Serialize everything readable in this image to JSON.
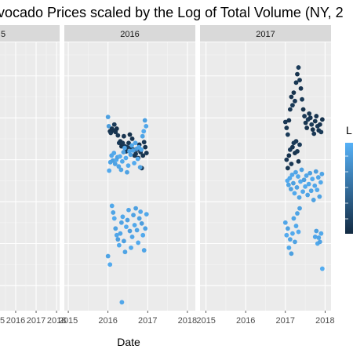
{
  "chart_data": {
    "type": "scatter",
    "title": "vocado Prices scaled by the Log of Total Volume (NY, 2",
    "xlabel": "Date",
    "ylabel": "",
    "facets": [
      {
        "label": "5",
        "xlim": [
          2014.85,
          2018.15
        ],
        "points": []
      },
      {
        "label": "2016",
        "xlim": [
          2014.9,
          2018.2
        ],
        "points": [
          {
            "x": 2016.0,
            "y": 0.51,
            "v": 0.88
          },
          {
            "x": 2016.02,
            "y": 0.4,
            "v": 0.85
          },
          {
            "x": 2016.05,
            "y": 0.34,
            "v": 0.05
          },
          {
            "x": 2016.07,
            "y": 0.32,
            "v": 0.1
          },
          {
            "x": 2016.1,
            "y": 0.37,
            "v": 0.08
          },
          {
            "x": 2016.13,
            "y": 0.35,
            "v": 0.06
          },
          {
            "x": 2016.16,
            "y": 0.42,
            "v": 0.12
          },
          {
            "x": 2016.19,
            "y": 0.33,
            "v": 0.07
          },
          {
            "x": 2016.22,
            "y": 0.37,
            "v": 0.06
          },
          {
            "x": 2016.25,
            "y": 0.29,
            "v": 0.1
          },
          {
            "x": 2016.28,
            "y": 0.2,
            "v": 0.12
          },
          {
            "x": 2016.31,
            "y": 0.22,
            "v": 0.08
          },
          {
            "x": 2016.34,
            "y": 0.16,
            "v": 0.05
          },
          {
            "x": 2016.37,
            "y": 0.2,
            "v": 0.09
          },
          {
            "x": 2016.4,
            "y": 0.28,
            "v": 0.07
          },
          {
            "x": 2016.43,
            "y": 0.16,
            "v": 0.1
          },
          {
            "x": 2016.46,
            "y": 0.1,
            "v": 0.06
          },
          {
            "x": 2016.49,
            "y": 0.15,
            "v": 0.12
          },
          {
            "x": 2016.52,
            "y": 0.2,
            "v": 0.08
          },
          {
            "x": 2016.55,
            "y": 0.3,
            "v": 0.05
          },
          {
            "x": 2016.58,
            "y": 0.15,
            "v": 0.11
          },
          {
            "x": 2016.61,
            "y": 0.25,
            "v": 0.07
          },
          {
            "x": 2016.64,
            "y": 0.12,
            "v": 0.09
          },
          {
            "x": 2016.67,
            "y": 0.05,
            "v": 0.06
          },
          {
            "x": 2016.7,
            "y": 0.07,
            "v": 0.08
          },
          {
            "x": 2016.73,
            "y": 0.12,
            "v": 0.1
          },
          {
            "x": 2016.76,
            "y": 0.02,
            "v": 0.05
          },
          {
            "x": 2016.79,
            "y": 0.18,
            "v": 0.07
          },
          {
            "x": 2016.82,
            "y": 0.09,
            "v": 0.09
          },
          {
            "x": 2016.85,
            "y": -0.1,
            "v": 0.12
          },
          {
            "x": 2016.88,
            "y": 0.05,
            "v": 0.08
          },
          {
            "x": 2016.91,
            "y": 0.21,
            "v": 0.1
          },
          {
            "x": 2016.94,
            "y": 0.15,
            "v": 0.06
          },
          {
            "x": 2016.97,
            "y": 0.08,
            "v": 0.09
          },
          {
            "x": 2016.03,
            "y": -0.13,
            "v": 0.95
          },
          {
            "x": 2016.06,
            "y": -0.03,
            "v": 0.9
          },
          {
            "x": 2016.09,
            "y": 0.05,
            "v": 0.92
          },
          {
            "x": 2016.12,
            "y": -0.01,
            "v": 0.87
          },
          {
            "x": 2016.15,
            "y": 0.08,
            "v": 0.93
          },
          {
            "x": 2016.18,
            "y": -0.05,
            "v": 0.89
          },
          {
            "x": 2016.21,
            "y": 0.0,
            "v": 0.94
          },
          {
            "x": 2016.24,
            "y": 0.03,
            "v": 0.88
          },
          {
            "x": 2016.27,
            "y": -0.08,
            "v": 0.91
          },
          {
            "x": 2016.3,
            "y": 0.04,
            "v": 0.96
          },
          {
            "x": 2016.33,
            "y": -0.12,
            "v": 0.9
          },
          {
            "x": 2016.36,
            "y": -0.02,
            "v": 0.93
          },
          {
            "x": 2016.39,
            "y": 0.09,
            "v": 0.87
          },
          {
            "x": 2016.42,
            "y": 0.14,
            "v": 0.92
          },
          {
            "x": 2016.45,
            "y": 0.02,
            "v": 0.95
          },
          {
            "x": 2016.48,
            "y": -0.15,
            "v": 0.89
          },
          {
            "x": 2016.51,
            "y": -0.07,
            "v": 0.94
          },
          {
            "x": 2016.54,
            "y": 0.1,
            "v": 0.91
          },
          {
            "x": 2016.57,
            "y": 0.06,
            "v": 0.88
          },
          {
            "x": 2016.6,
            "y": 0.17,
            "v": 0.93
          },
          {
            "x": 2016.63,
            "y": 0.11,
            "v": 0.9
          },
          {
            "x": 2016.66,
            "y": -0.04,
            "v": 0.95
          },
          {
            "x": 2016.69,
            "y": 0.2,
            "v": 0.92
          },
          {
            "x": 2016.72,
            "y": 0.13,
            "v": 0.86
          },
          {
            "x": 2016.75,
            "y": 0.01,
            "v": 0.94
          },
          {
            "x": 2016.78,
            "y": 0.15,
            "v": 0.91
          },
          {
            "x": 2016.81,
            "y": -0.09,
            "v": 0.88
          },
          {
            "x": 2016.84,
            "y": 0.12,
            "v": 0.93
          },
          {
            "x": 2016.87,
            "y": 0.28,
            "v": 0.9
          },
          {
            "x": 2016.9,
            "y": 0.34,
            "v": 0.95
          },
          {
            "x": 2016.93,
            "y": 0.47,
            "v": 0.87
          },
          {
            "x": 2016.96,
            "y": 0.4,
            "v": 0.92
          },
          {
            "x": 2016.1,
            "y": -0.55,
            "v": 0.93
          },
          {
            "x": 2016.13,
            "y": -0.63,
            "v": 0.9
          },
          {
            "x": 2016.16,
            "y": -0.7,
            "v": 0.95
          },
          {
            "x": 2016.19,
            "y": -0.82,
            "v": 0.88
          },
          {
            "x": 2016.22,
            "y": -0.9,
            "v": 0.92
          },
          {
            "x": 2016.25,
            "y": -0.95,
            "v": 0.86
          },
          {
            "x": 2016.28,
            "y": -1.02,
            "v": 0.94
          },
          {
            "x": 2016.31,
            "y": -0.88,
            "v": 0.91
          },
          {
            "x": 2016.34,
            "y": -0.75,
            "v": 0.89
          },
          {
            "x": 2016.37,
            "y": -0.68,
            "v": 0.93
          },
          {
            "x": 2016.4,
            "y": -0.97,
            "v": 0.87
          },
          {
            "x": 2016.43,
            "y": -1.1,
            "v": 0.9
          },
          {
            "x": 2016.46,
            "y": -0.8,
            "v": 0.95
          },
          {
            "x": 2016.49,
            "y": -0.72,
            "v": 0.88
          },
          {
            "x": 2016.52,
            "y": -0.6,
            "v": 0.92
          },
          {
            "x": 2016.55,
            "y": -0.85,
            "v": 0.86
          },
          {
            "x": 2016.58,
            "y": -1.05,
            "v": 0.94
          },
          {
            "x": 2016.61,
            "y": -0.92,
            "v": 0.91
          },
          {
            "x": 2016.64,
            "y": -0.66,
            "v": 0.89
          },
          {
            "x": 2016.67,
            "y": -0.78,
            "v": 0.93
          },
          {
            "x": 2016.7,
            "y": -0.58,
            "v": 0.87
          },
          {
            "x": 2016.73,
            "y": -0.84,
            "v": 0.9
          },
          {
            "x": 2016.76,
            "y": -0.99,
            "v": 0.95
          },
          {
            "x": 2016.79,
            "y": -0.7,
            "v": 0.88
          },
          {
            "x": 2016.82,
            "y": -0.62,
            "v": 0.92
          },
          {
            "x": 2016.85,
            "y": -0.76,
            "v": 0.86
          },
          {
            "x": 2016.88,
            "y": -0.9,
            "v": 0.94
          },
          {
            "x": 2016.91,
            "y": -1.08,
            "v": 0.91
          },
          {
            "x": 2016.94,
            "y": -0.82,
            "v": 0.89
          },
          {
            "x": 2016.97,
            "y": -0.65,
            "v": 0.93
          },
          {
            "x": 2016.0,
            "y": -1.15,
            "v": 0.9
          },
          {
            "x": 2016.05,
            "y": -1.25,
            "v": 0.95
          },
          {
            "x": 2016.35,
            "y": -1.7,
            "v": 0.92
          }
        ]
      },
      {
        "label": "2017",
        "xlim": [
          2014.85,
          2018.15
        ],
        "points": [
          {
            "x": 2017.0,
            "y": 0.45,
            "v": 0.1
          },
          {
            "x": 2017.03,
            "y": 0.38,
            "v": 0.08
          },
          {
            "x": 2017.06,
            "y": 0.3,
            "v": 0.12
          },
          {
            "x": 2017.09,
            "y": 0.47,
            "v": 0.06
          },
          {
            "x": 2017.12,
            "y": 0.6,
            "v": 0.09
          },
          {
            "x": 2017.15,
            "y": 0.75,
            "v": 0.07
          },
          {
            "x": 2017.18,
            "y": 0.65,
            "v": 0.11
          },
          {
            "x": 2017.21,
            "y": 0.8,
            "v": 0.05
          },
          {
            "x": 2017.24,
            "y": 0.7,
            "v": 0.1
          },
          {
            "x": 2017.27,
            "y": 0.92,
            "v": 0.08
          },
          {
            "x": 2017.3,
            "y": 1.02,
            "v": 0.06
          },
          {
            "x": 2017.33,
            "y": 1.1,
            "v": 0.12
          },
          {
            "x": 2017.36,
            "y": 0.95,
            "v": 0.09
          },
          {
            "x": 2017.39,
            "y": 0.85,
            "v": 0.07
          },
          {
            "x": 2017.42,
            "y": 0.72,
            "v": 0.11
          },
          {
            "x": 2017.45,
            "y": 0.6,
            "v": 0.05
          },
          {
            "x": 2017.48,
            "y": 0.52,
            "v": 0.1
          },
          {
            "x": 2017.51,
            "y": 0.44,
            "v": 0.08
          },
          {
            "x": 2017.54,
            "y": 0.38,
            "v": 0.06
          },
          {
            "x": 2017.57,
            "y": 0.48,
            "v": 0.12
          },
          {
            "x": 2017.6,
            "y": 0.55,
            "v": 0.09
          },
          {
            "x": 2017.63,
            "y": 0.5,
            "v": 0.07
          },
          {
            "x": 2017.66,
            "y": 0.42,
            "v": 0.11
          },
          {
            "x": 2017.69,
            "y": 0.36,
            "v": 0.05
          },
          {
            "x": 2017.72,
            "y": 0.31,
            "v": 0.1
          },
          {
            "x": 2017.75,
            "y": 0.46,
            "v": 0.08
          },
          {
            "x": 2017.78,
            "y": 0.52,
            "v": 0.06
          },
          {
            "x": 2017.81,
            "y": 0.4,
            "v": 0.12
          },
          {
            "x": 2017.84,
            "y": 0.35,
            "v": 0.09
          },
          {
            "x": 2017.87,
            "y": 0.42,
            "v": 0.07
          },
          {
            "x": 2017.9,
            "y": 0.33,
            "v": 0.11
          },
          {
            "x": 2017.93,
            "y": 0.48,
            "v": 0.05
          },
          {
            "x": 2017.03,
            "y": 0.0,
            "v": 0.1
          },
          {
            "x": 2017.06,
            "y": -0.1,
            "v": 0.08
          },
          {
            "x": 2017.09,
            "y": 0.05,
            "v": 0.06
          },
          {
            "x": 2017.12,
            "y": 0.12,
            "v": 0.12
          },
          {
            "x": 2017.15,
            "y": -0.05,
            "v": 0.09
          },
          {
            "x": 2017.18,
            "y": 0.15,
            "v": 0.07
          },
          {
            "x": 2017.21,
            "y": 0.2,
            "v": 0.11
          },
          {
            "x": 2017.24,
            "y": 0.08,
            "v": 0.05
          },
          {
            "x": 2017.27,
            "y": 0.22,
            "v": 0.1
          },
          {
            "x": 2017.3,
            "y": 0.1,
            "v": 0.08
          },
          {
            "x": 2017.33,
            "y": -0.02,
            "v": 0.06
          },
          {
            "x": 2017.36,
            "y": 0.18,
            "v": 0.12
          },
          {
            "x": 2017.05,
            "y": -0.25,
            "v": 0.95
          },
          {
            "x": 2017.08,
            "y": -0.3,
            "v": 0.9
          },
          {
            "x": 2017.11,
            "y": -0.22,
            "v": 0.93
          },
          {
            "x": 2017.14,
            "y": -0.35,
            "v": 0.88
          },
          {
            "x": 2017.17,
            "y": -0.18,
            "v": 0.92
          },
          {
            "x": 2017.2,
            "y": -0.28,
            "v": 0.87
          },
          {
            "x": 2017.23,
            "y": -0.4,
            "v": 0.94
          },
          {
            "x": 2017.26,
            "y": -0.15,
            "v": 0.91
          },
          {
            "x": 2017.29,
            "y": -0.33,
            "v": 0.89
          },
          {
            "x": 2017.32,
            "y": -0.2,
            "v": 0.93
          },
          {
            "x": 2017.35,
            "y": -0.45,
            "v": 0.9
          },
          {
            "x": 2017.38,
            "y": -0.26,
            "v": 0.95
          },
          {
            "x": 2017.41,
            "y": -0.12,
            "v": 0.88
          },
          {
            "x": 2017.44,
            "y": -0.38,
            "v": 0.92
          },
          {
            "x": 2017.47,
            "y": -0.24,
            "v": 0.86
          },
          {
            "x": 2017.5,
            "y": -0.32,
            "v": 0.94
          },
          {
            "x": 2017.53,
            "y": -0.19,
            "v": 0.91
          },
          {
            "x": 2017.56,
            "y": -0.42,
            "v": 0.89
          },
          {
            "x": 2017.59,
            "y": -0.29,
            "v": 0.93
          },
          {
            "x": 2017.62,
            "y": -0.16,
            "v": 0.87
          },
          {
            "x": 2017.65,
            "y": -0.37,
            "v": 0.9
          },
          {
            "x": 2017.68,
            "y": -0.23,
            "v": 0.95
          },
          {
            "x": 2017.71,
            "y": -0.48,
            "v": 0.88
          },
          {
            "x": 2017.74,
            "y": -0.31,
            "v": 0.92
          },
          {
            "x": 2017.77,
            "y": -0.14,
            "v": 0.86
          },
          {
            "x": 2017.8,
            "y": -0.36,
            "v": 0.94
          },
          {
            "x": 2017.83,
            "y": -0.21,
            "v": 0.91
          },
          {
            "x": 2017.86,
            "y": -0.44,
            "v": 0.89
          },
          {
            "x": 2017.89,
            "y": -0.27,
            "v": 0.93
          },
          {
            "x": 2017.92,
            "y": -0.17,
            "v": 0.9
          },
          {
            "x": 2017.0,
            "y": -0.75,
            "v": 0.92
          },
          {
            "x": 2017.03,
            "y": -0.9,
            "v": 0.95
          },
          {
            "x": 2017.06,
            "y": -0.82,
            "v": 0.88
          },
          {
            "x": 2017.09,
            "y": -1.05,
            "v": 0.93
          },
          {
            "x": 2017.12,
            "y": -0.95,
            "v": 0.9
          },
          {
            "x": 2017.15,
            "y": -1.12,
            "v": 0.87
          },
          {
            "x": 2017.18,
            "y": -0.88,
            "v": 0.94
          },
          {
            "x": 2017.21,
            "y": -0.7,
            "v": 0.91
          },
          {
            "x": 2017.24,
            "y": -0.98,
            "v": 0.89
          },
          {
            "x": 2017.27,
            "y": -0.79,
            "v": 0.93
          },
          {
            "x": 2017.3,
            "y": -0.64,
            "v": 0.9
          },
          {
            "x": 2017.33,
            "y": -0.86,
            "v": 0.95
          },
          {
            "x": 2017.36,
            "y": -0.58,
            "v": 0.88
          },
          {
            "x": 2017.75,
            "y": -0.92,
            "v": 0.92
          },
          {
            "x": 2017.78,
            "y": -0.85,
            "v": 0.87
          },
          {
            "x": 2017.81,
            "y": -1.0,
            "v": 0.94
          },
          {
            "x": 2017.84,
            "y": -0.93,
            "v": 0.91
          },
          {
            "x": 2017.87,
            "y": -0.98,
            "v": 0.89
          },
          {
            "x": 2017.9,
            "y": -0.88,
            "v": 0.93
          },
          {
            "x": 2017.93,
            "y": -1.3,
            "v": 0.96
          }
        ]
      }
    ],
    "x_ticks": [
      2015,
      2016,
      2017,
      2018
    ],
    "ylim": [
      -1.8,
      1.4
    ],
    "grid": true,
    "legend": {
      "title": "L",
      "placement": "right",
      "colormap": [
        "#132B43",
        "#56B1F7"
      ]
    }
  }
}
